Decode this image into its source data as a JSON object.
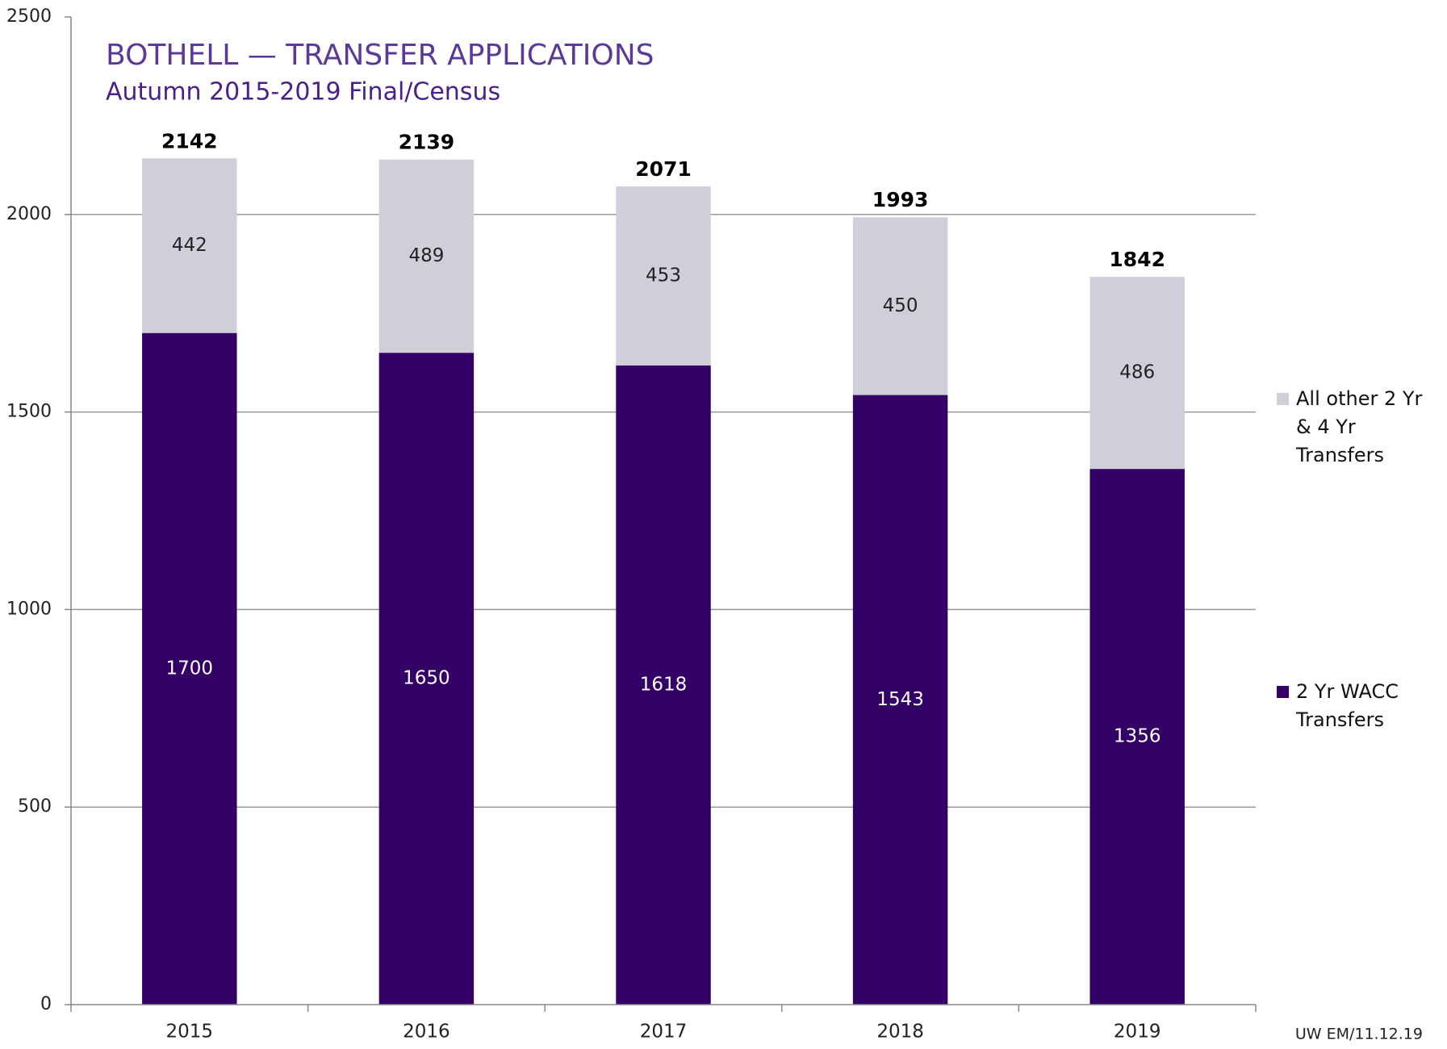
{
  "chart_data": {
    "type": "stacked_bar",
    "title": "BOTHELL — TRANSFER APPLICATIONS",
    "subtitle": "Autumn 2015-2019 Final/Census",
    "categories": [
      "2015",
      "2016",
      "2017",
      "2018",
      "2019"
    ],
    "series": [
      {
        "name": "2 Yr WACC Transfers",
        "color": "#330066",
        "label_color": "#ffffff",
        "values": [
          1700,
          1650,
          1618,
          1543,
          1356
        ]
      },
      {
        "name": "All other 2 Yr & 4 Yr Transfers",
        "color": "#d0ced9",
        "label_color": "#222222",
        "values": [
          442,
          489,
          453,
          450,
          486
        ]
      }
    ],
    "totals": [
      2142,
      2139,
      2071,
      1993,
      1842
    ],
    "ylim": [
      0,
      2500
    ],
    "yticks": [
      0,
      500,
      1000,
      1500,
      2000,
      2500
    ],
    "grid": true,
    "legend": "right",
    "footnote": "UW EM/11.12.19"
  }
}
